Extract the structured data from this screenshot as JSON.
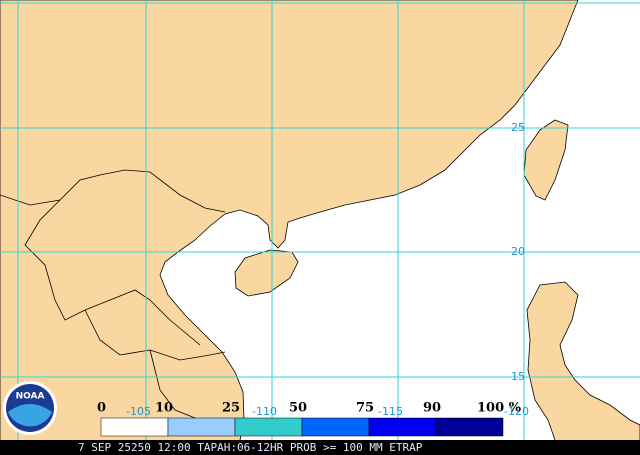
{
  "logo": "NOAA",
  "grid": {
    "lat_labels": [
      "25",
      "20",
      "15"
    ],
    "lon_labels": [
      "-105",
      "-110",
      "-115",
      "-120"
    ]
  },
  "legend": {
    "labels": [
      "0",
      "10",
      "25",
      "50",
      "75",
      "90",
      "100 %"
    ],
    "colors": [
      "#ffffff",
      "#99ccff",
      "#33cccc",
      "#0066ff",
      "#0000ee",
      "#000099"
    ]
  },
  "caption": "7 SEP 25250 12:00 TAPAH:06-12HR PROB >= 100 MM ETRAP"
}
